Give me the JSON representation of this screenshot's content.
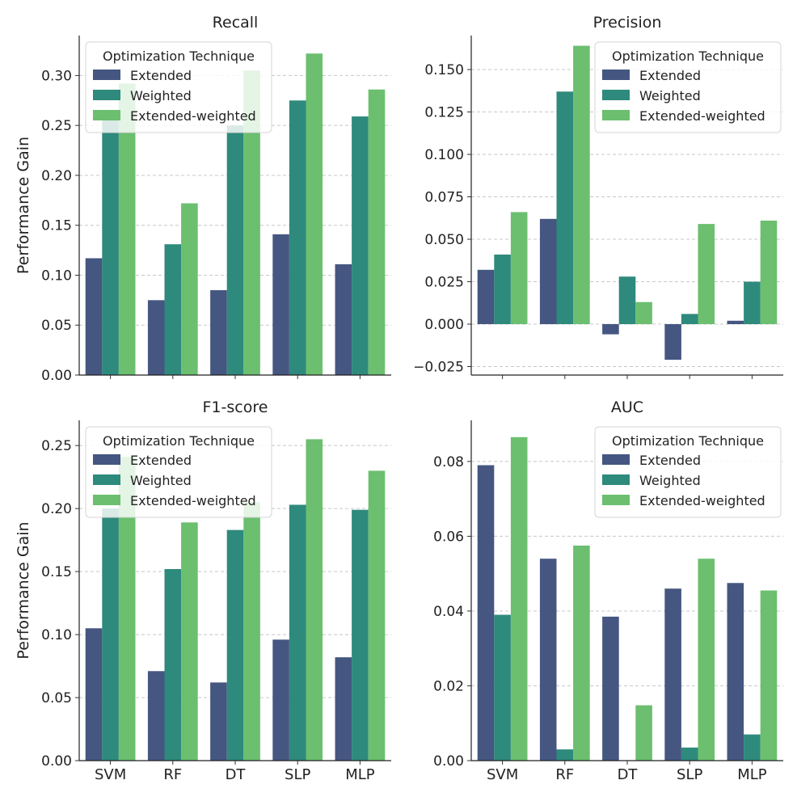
{
  "figure": {
    "legend_title": "Optimization Technique",
    "shared_ylabel": "Performance Gain"
  },
  "chart_data": [
    {
      "type": "bar",
      "title": "Recall",
      "ylabel": "Performance Gain",
      "xlabel": "",
      "categories": [
        "SVM",
        "RF",
        "DT",
        "SLP",
        "MLP"
      ],
      "show_xticklabels": false,
      "ylim": [
        0,
        0.34
      ],
      "yticks": [
        0.0,
        0.05,
        0.1,
        0.15,
        0.2,
        0.25,
        0.3
      ],
      "ytick_labels": [
        "0.00",
        "0.05",
        "0.10",
        "0.15",
        "0.20",
        "0.25",
        "0.30"
      ],
      "grid": true,
      "legend_position": "top-left",
      "series": [
        {
          "name": "Extended",
          "color": "#455681",
          "values": [
            0.117,
            0.075,
            0.085,
            0.141,
            0.111
          ]
        },
        {
          "name": "Weighted",
          "color": "#2e8a7c",
          "values": [
            0.255,
            0.131,
            0.25,
            0.275,
            0.259
          ]
        },
        {
          "name": "Extended-weighted",
          "color": "#6bbf6f",
          "values": [
            0.292,
            0.172,
            0.305,
            0.322,
            0.286
          ]
        }
      ]
    },
    {
      "type": "bar",
      "title": "Precision",
      "ylabel": "",
      "xlabel": "",
      "categories": [
        "SVM",
        "RF",
        "DT",
        "SLP",
        "MLP"
      ],
      "show_xticklabels": false,
      "ylim": [
        -0.03,
        0.17
      ],
      "yticks": [
        -0.025,
        0.0,
        0.025,
        0.05,
        0.075,
        0.1,
        0.125,
        0.15
      ],
      "ytick_labels": [
        "−0.025",
        "0.000",
        "0.025",
        "0.050",
        "0.075",
        "0.100",
        "0.125",
        "0.150"
      ],
      "grid": true,
      "legend_position": "top-right",
      "series": [
        {
          "name": "Extended",
          "color": "#455681",
          "values": [
            0.032,
            0.062,
            -0.006,
            -0.021,
            0.002
          ]
        },
        {
          "name": "Weighted",
          "color": "#2e8a7c",
          "values": [
            0.041,
            0.137,
            0.028,
            0.006,
            0.025
          ]
        },
        {
          "name": "Extended-weighted",
          "color": "#6bbf6f",
          "values": [
            0.066,
            0.164,
            0.013,
            0.059,
            0.061
          ]
        }
      ]
    },
    {
      "type": "bar",
      "title": "F1-score",
      "ylabel": "Performance Gain",
      "xlabel": "",
      "categories": [
        "SVM",
        "RF",
        "DT",
        "SLP",
        "MLP"
      ],
      "show_xticklabels": true,
      "ylim": [
        0,
        0.27
      ],
      "yticks": [
        0.0,
        0.05,
        0.1,
        0.15,
        0.2,
        0.25
      ],
      "ytick_labels": [
        "0.00",
        "0.05",
        "0.10",
        "0.15",
        "0.20",
        "0.25"
      ],
      "grid": true,
      "legend_position": "top-left",
      "series": [
        {
          "name": "Extended",
          "color": "#455681",
          "values": [
            0.105,
            0.071,
            0.062,
            0.096,
            0.082
          ]
        },
        {
          "name": "Weighted",
          "color": "#2e8a7c",
          "values": [
            0.2,
            0.152,
            0.183,
            0.203,
            0.199
          ]
        },
        {
          "name": "Extended-weighted",
          "color": "#6bbf6f",
          "values": [
            0.241,
            0.189,
            0.205,
            0.255,
            0.23
          ]
        }
      ]
    },
    {
      "type": "bar",
      "title": "AUC",
      "ylabel": "",
      "xlabel": "",
      "categories": [
        "SVM",
        "RF",
        "DT",
        "SLP",
        "MLP"
      ],
      "show_xticklabels": true,
      "ylim": [
        0,
        0.091
      ],
      "yticks": [
        0.0,
        0.02,
        0.04,
        0.06,
        0.08
      ],
      "ytick_labels": [
        "0.00",
        "0.02",
        "0.04",
        "0.06",
        "0.08"
      ],
      "grid": true,
      "legend_position": "top-right",
      "series": [
        {
          "name": "Extended",
          "color": "#455681",
          "values": [
            0.079,
            0.054,
            0.0385,
            0.046,
            0.0475
          ]
        },
        {
          "name": "Weighted",
          "color": "#2e8a7c",
          "values": [
            0.039,
            0.003,
            0.0,
            0.0035,
            0.007
          ]
        },
        {
          "name": "Extended-weighted",
          "color": "#6bbf6f",
          "values": [
            0.0865,
            0.0575,
            0.0148,
            0.054,
            0.0455
          ]
        }
      ]
    }
  ]
}
